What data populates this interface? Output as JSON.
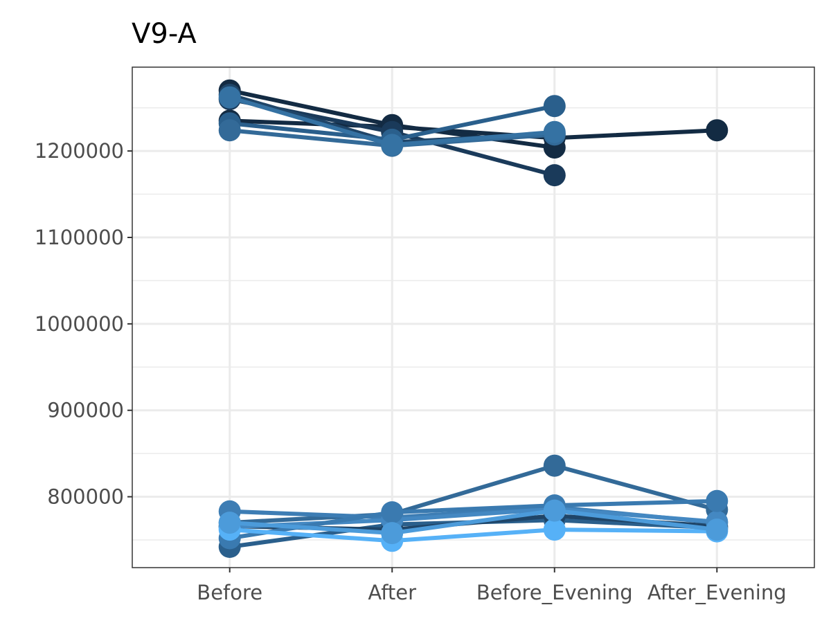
{
  "chart_data": {
    "type": "line",
    "title": "V9-A",
    "xlabel": "",
    "ylabel": "",
    "categories": [
      "Before",
      "After",
      "Before_Evening",
      "After_Evening"
    ],
    "y_ticks": [
      800000,
      900000,
      1000000,
      1100000,
      1200000
    ],
    "y_tick_labels": [
      "800000",
      "900000",
      "1000000",
      "1100000",
      "1200000"
    ],
    "ylim": [
      718000,
      1297000
    ],
    "grid": true,
    "legend": "none",
    "series": [
      {
        "values": [
          1235000,
          1228000,
          1215000,
          1224000
        ],
        "color": "#132B43"
      },
      {
        "values": [
          1270000,
          1230000,
          1204000,
          null
        ],
        "color": "#132B43"
      },
      {
        "values": [
          1260000,
          1222000,
          1172000,
          null
        ],
        "color": "#1A3A5A"
      },
      {
        "values": [
          1265000,
          1210000,
          1220000,
          null
        ],
        "color": "#1F4568"
      },
      {
        "values": [
          1232000,
          1213000,
          1252000,
          null
        ],
        "color": "#2A5F8C"
      },
      {
        "values": [
          1224000,
          1206000,
          1219000,
          null
        ],
        "color": "#336A98"
      },
      {
        "values": [
          1262000,
          1207000,
          1222000,
          null
        ],
        "color": "#3572A3"
      },
      {
        "values": [
          742000,
          768000,
          773000,
          764000
        ],
        "color": "#2A5F8C"
      },
      {
        "values": [
          770000,
          780000,
          836000,
          785000
        ],
        "color": "#336A98"
      },
      {
        "values": [
          766000,
          762000,
          778000,
          766000
        ],
        "color": "#1F4568"
      },
      {
        "values": [
          783000,
          776000,
          788000,
          770000
        ],
        "color": "#3D7DB4"
      },
      {
        "values": [
          765000,
          773000,
          786000,
          771000
        ],
        "color": "#4488C2"
      },
      {
        "values": [
          752000,
          782000,
          790000,
          795000
        ],
        "color": "#3A7AB0"
      },
      {
        "values": [
          762000,
          749000,
          762000,
          760000
        ],
        "color": "#56B1F7"
      },
      {
        "values": [
          770000,
          758000,
          784000,
          762000
        ],
        "color": "#4C9BDA"
      }
    ]
  }
}
